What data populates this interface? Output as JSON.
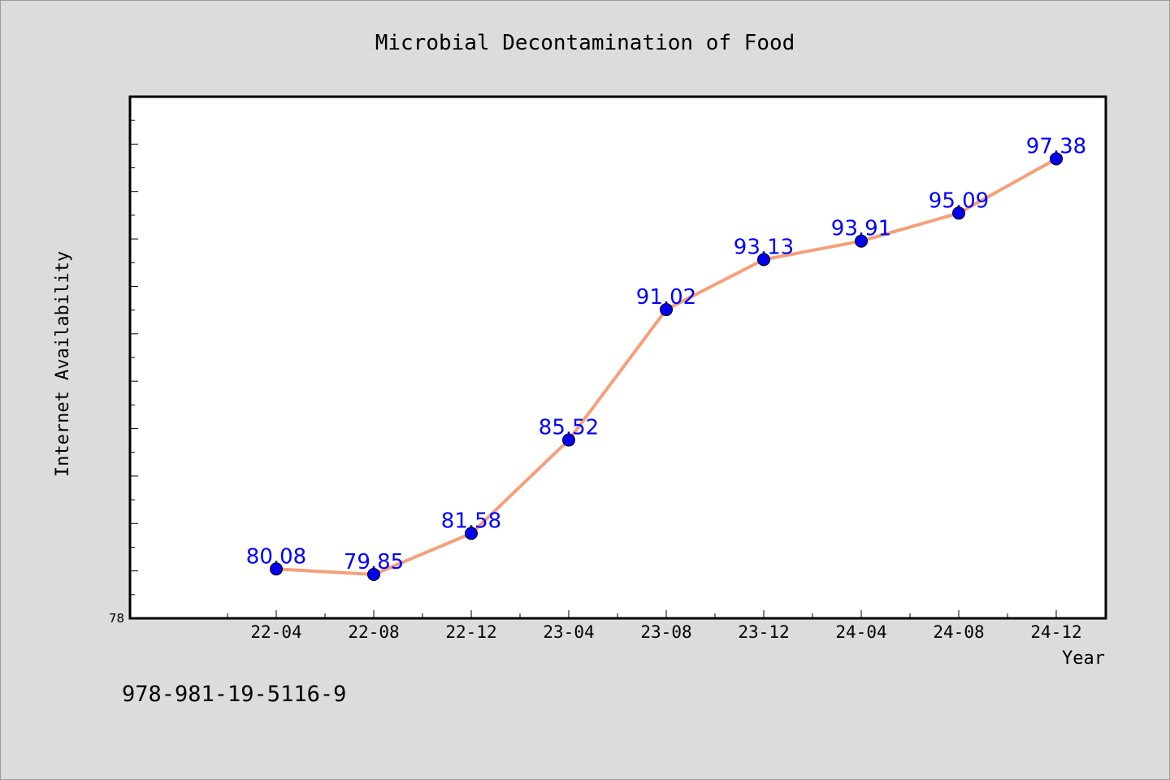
{
  "chart_data": {
    "type": "line",
    "title": "Microbial Decontamination of Food",
    "xlabel": "Year",
    "ylabel": "Internet Availability",
    "categories": [
      "22-04",
      "22-08",
      "22-12",
      "23-04",
      "23-08",
      "23-12",
      "24-04",
      "24-08",
      "24-12"
    ],
    "series": [
      {
        "values": [
          80.08,
          79.85,
          81.58,
          85.52,
          91.02,
          93.13,
          93.91,
          95.09,
          97.38
        ],
        "labels": [
          "80.08",
          "79.85",
          "81.58",
          "85.52",
          "91.02",
          "93.13",
          "93.91",
          "95.09",
          "97.38"
        ],
        "line_color": "#f5a07a",
        "marker_color": "#0000ee",
        "label_color": "#0000ff"
      }
    ],
    "ylim": [
      78,
      100
    ],
    "y_tick_labels": [
      "78"
    ],
    "grid": false,
    "legend": "none"
  },
  "footer_code": "978-981-19-5116-9",
  "colors": {
    "background": "#dcdcdc",
    "plot_background": "#ffffff",
    "axis": "#000000"
  }
}
